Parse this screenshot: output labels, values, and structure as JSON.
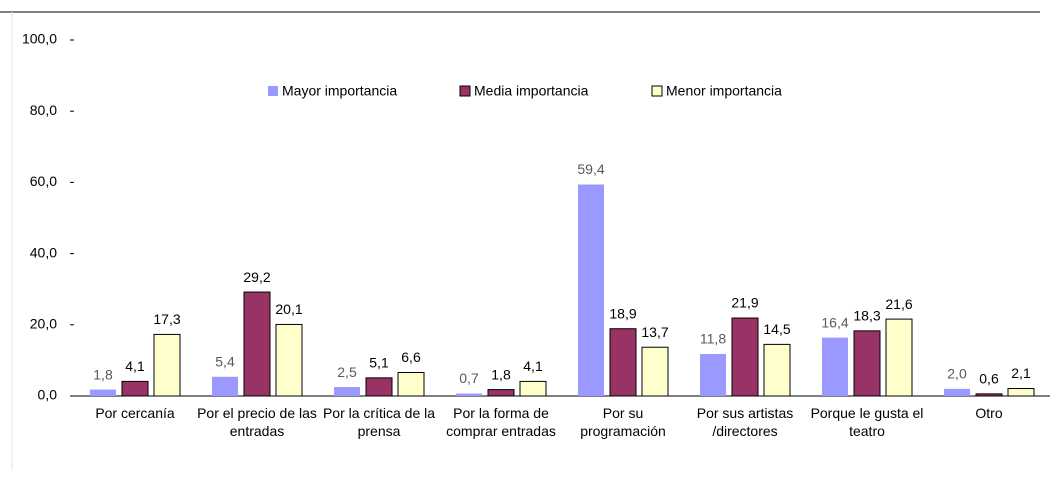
{
  "chart_data": {
    "type": "bar",
    "categories": [
      "Por cercanía",
      "Por el precio de las entradas",
      "Por la crítica de la prensa",
      "Por la forma de comprar entradas",
      "Por su programación",
      "Por sus artistas /directores",
      "Porque le gusta el teatro",
      "Otro"
    ],
    "series": [
      {
        "name": "Mayor importancia",
        "color": "#9999ff",
        "values": [
          1.8,
          5.4,
          2.5,
          0.7,
          59.4,
          11.8,
          16.4,
          2.0
        ],
        "value_labels": [
          "1,8",
          "5,4",
          "2,5",
          "0,7",
          "59,4",
          "11,8",
          "16,4",
          "2,0"
        ]
      },
      {
        "name": "Media importancia",
        "color": "#993366",
        "values": [
          4.1,
          29.2,
          5.1,
          1.8,
          18.9,
          21.9,
          18.3,
          0.6
        ],
        "value_labels": [
          "4,1",
          "29,2",
          "5,1",
          "1,8",
          "18,9",
          "21,9",
          "18,3",
          "0,6"
        ]
      },
      {
        "name": "Menor importancia",
        "color": "#ffffcc",
        "values": [
          17.3,
          20.1,
          6.6,
          4.1,
          13.7,
          14.5,
          21.6,
          2.1
        ],
        "value_labels": [
          "17,3",
          "20,1",
          "6,6",
          "4,1",
          "13,7",
          "14,5",
          "21,6",
          "2,1"
        ]
      }
    ],
    "ylim": [
      0,
      100
    ],
    "yticks": [
      {
        "value": 0,
        "label": "0,0"
      },
      {
        "value": 20,
        "label": "20,0"
      },
      {
        "value": 40,
        "label": "40,0"
      },
      {
        "value": 60,
        "label": "60,0"
      },
      {
        "value": 80,
        "label": "80,0"
      },
      {
        "value": 100,
        "label": "100,0"
      }
    ],
    "legend": "top"
  }
}
